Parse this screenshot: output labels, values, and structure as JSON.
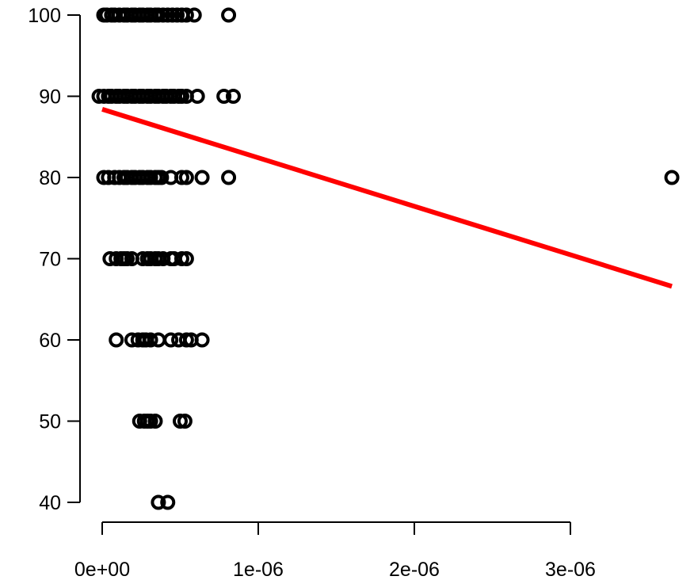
{
  "chart_data": {
    "type": "scatter",
    "title": "",
    "xlabel": "",
    "ylabel": "",
    "xlim": [
      -1e-07,
      3.72e-06
    ],
    "ylim": [
      40,
      100
    ],
    "x_ticks": [
      0,
      1e-06,
      2e-06,
      3e-06
    ],
    "x_tick_labels": [
      "0e+00",
      "1e-06",
      "2e-06",
      "3e-06"
    ],
    "y_ticks": [
      40,
      50,
      60,
      70,
      80,
      90,
      100
    ],
    "y_tick_labels": [
      "40",
      "50",
      "60",
      "70",
      "80",
      "90",
      "100"
    ],
    "grid": false,
    "legend": "none",
    "point_color": "#000000",
    "fit_line": {
      "color": "#ff0000",
      "x": [
        0,
        3.65e-06
      ],
      "y": [
        88.4,
        66.6
      ]
    },
    "points": [
      {
        "x": 1e-08,
        "y": 100
      },
      {
        "x": 3e-08,
        "y": 100
      },
      {
        "x": 6e-08,
        "y": 100
      },
      {
        "x": 8e-08,
        "y": 100
      },
      {
        "x": 1.1e-07,
        "y": 100
      },
      {
        "x": 1.4e-07,
        "y": 100
      },
      {
        "x": 1.6e-07,
        "y": 100
      },
      {
        "x": 1.9e-07,
        "y": 100
      },
      {
        "x": 2.1e-07,
        "y": 100
      },
      {
        "x": 2.4e-07,
        "y": 100
      },
      {
        "x": 2.6e-07,
        "y": 100
      },
      {
        "x": 2.9e-07,
        "y": 100
      },
      {
        "x": 3.1e-07,
        "y": 100
      },
      {
        "x": 3.4e-07,
        "y": 100
      },
      {
        "x": 3.6e-07,
        "y": 100
      },
      {
        "x": 3.9e-07,
        "y": 100
      },
      {
        "x": 4.2e-07,
        "y": 100
      },
      {
        "x": 4.5e-07,
        "y": 100
      },
      {
        "x": 4.8e-07,
        "y": 100
      },
      {
        "x": 5.1e-07,
        "y": 100
      },
      {
        "x": 5.4e-07,
        "y": 100
      },
      {
        "x": 5.9e-07,
        "y": 100
      },
      {
        "x": 8.1e-07,
        "y": 100
      },
      {
        "x": -2e-08,
        "y": 90
      },
      {
        "x": 1e-08,
        "y": 90
      },
      {
        "x": 4e-08,
        "y": 90
      },
      {
        "x": 6e-08,
        "y": 90
      },
      {
        "x": 9e-08,
        "y": 90
      },
      {
        "x": 1.1e-07,
        "y": 90
      },
      {
        "x": 1.4e-07,
        "y": 90
      },
      {
        "x": 1.6e-07,
        "y": 90
      },
      {
        "x": 1.9e-07,
        "y": 90
      },
      {
        "x": 2.1e-07,
        "y": 90
      },
      {
        "x": 2.4e-07,
        "y": 90
      },
      {
        "x": 2.6e-07,
        "y": 90
      },
      {
        "x": 2.9e-07,
        "y": 90
      },
      {
        "x": 3.1e-07,
        "y": 90
      },
      {
        "x": 3.4e-07,
        "y": 90
      },
      {
        "x": 3.6e-07,
        "y": 90
      },
      {
        "x": 3.9e-07,
        "y": 90
      },
      {
        "x": 4.1e-07,
        "y": 90
      },
      {
        "x": 4.4e-07,
        "y": 90
      },
      {
        "x": 4.6e-07,
        "y": 90
      },
      {
        "x": 4.9e-07,
        "y": 90
      },
      {
        "x": 5.1e-07,
        "y": 90
      },
      {
        "x": 5.4e-07,
        "y": 90
      },
      {
        "x": 6.1e-07,
        "y": 90
      },
      {
        "x": 7.8e-07,
        "y": 90
      },
      {
        "x": 8.4e-07,
        "y": 90
      },
      {
        "x": 1e-08,
        "y": 80
      },
      {
        "x": 4e-08,
        "y": 80
      },
      {
        "x": 8e-08,
        "y": 80
      },
      {
        "x": 1.1e-07,
        "y": 80
      },
      {
        "x": 1.4e-07,
        "y": 80
      },
      {
        "x": 1.6e-07,
        "y": 80
      },
      {
        "x": 1.9e-07,
        "y": 80
      },
      {
        "x": 2.1e-07,
        "y": 80
      },
      {
        "x": 2.4e-07,
        "y": 80
      },
      {
        "x": 2.6e-07,
        "y": 80
      },
      {
        "x": 2.9e-07,
        "y": 80
      },
      {
        "x": 3.1e-07,
        "y": 80
      },
      {
        "x": 3.4e-07,
        "y": 80
      },
      {
        "x": 3.6e-07,
        "y": 80
      },
      {
        "x": 3.8e-07,
        "y": 80
      },
      {
        "x": 4.4e-07,
        "y": 80
      },
      {
        "x": 5.1e-07,
        "y": 80
      },
      {
        "x": 5.4e-07,
        "y": 80
      },
      {
        "x": 6.4e-07,
        "y": 80
      },
      {
        "x": 8.1e-07,
        "y": 80
      },
      {
        "x": 3.65e-06,
        "y": 80
      },
      {
        "x": 5e-08,
        "y": 70
      },
      {
        "x": 9e-08,
        "y": 70
      },
      {
        "x": 1.2e-07,
        "y": 70
      },
      {
        "x": 1.4e-07,
        "y": 70
      },
      {
        "x": 1.6e-07,
        "y": 70
      },
      {
        "x": 1.9e-07,
        "y": 70
      },
      {
        "x": 2.6e-07,
        "y": 70
      },
      {
        "x": 2.9e-07,
        "y": 70
      },
      {
        "x": 3.1e-07,
        "y": 70
      },
      {
        "x": 3.4e-07,
        "y": 70
      },
      {
        "x": 3.6e-07,
        "y": 70
      },
      {
        "x": 3.9e-07,
        "y": 70
      },
      {
        "x": 4.4e-07,
        "y": 70
      },
      {
        "x": 4.6e-07,
        "y": 70
      },
      {
        "x": 5.1e-07,
        "y": 70
      },
      {
        "x": 5.4e-07,
        "y": 70
      },
      {
        "x": 9e-08,
        "y": 60
      },
      {
        "x": 1.9e-07,
        "y": 60
      },
      {
        "x": 2.3e-07,
        "y": 60
      },
      {
        "x": 2.6e-07,
        "y": 60
      },
      {
        "x": 2.8e-07,
        "y": 60
      },
      {
        "x": 3.1e-07,
        "y": 60
      },
      {
        "x": 3.6e-07,
        "y": 60
      },
      {
        "x": 4.4e-07,
        "y": 60
      },
      {
        "x": 4.9e-07,
        "y": 60
      },
      {
        "x": 5.4e-07,
        "y": 60
      },
      {
        "x": 5.7e-07,
        "y": 60
      },
      {
        "x": 6.4e-07,
        "y": 60
      },
      {
        "x": 2.4e-07,
        "y": 50
      },
      {
        "x": 2.7e-07,
        "y": 50
      },
      {
        "x": 2.9e-07,
        "y": 50
      },
      {
        "x": 3.1e-07,
        "y": 50
      },
      {
        "x": 3.4e-07,
        "y": 50
      },
      {
        "x": 5e-07,
        "y": 50
      },
      {
        "x": 5.3e-07,
        "y": 50
      },
      {
        "x": 3.6e-07,
        "y": 40
      },
      {
        "x": 4.2e-07,
        "y": 40
      }
    ]
  }
}
